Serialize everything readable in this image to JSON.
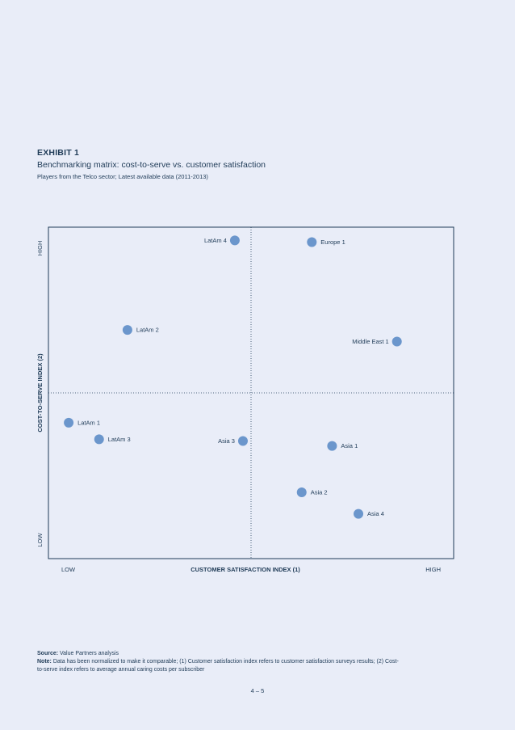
{
  "header": {
    "exhibit_label": "EXHIBIT 1",
    "title": "Benchmarking matrix: cost-to-serve vs. customer satisfaction",
    "subtitle": "Players from the Telco sector; Latest available data (2011-2013)"
  },
  "chart_data": {
    "type": "scatter",
    "title": "Benchmarking matrix: cost-to-serve vs. customer satisfaction",
    "xlabel": "CUSTOMER SATISFACTION INDEX (1)",
    "ylabel": "COST-TO-SERVE INDEX (2)",
    "x_low_label": "LOW",
    "x_high_label": "HIGH",
    "y_low_label": "LOW",
    "y_high_label": "HIGH",
    "xlim": [
      0,
      100
    ],
    "ylim": [
      0,
      100
    ],
    "x_divider": 50,
    "y_divider": 50,
    "marker_color": "#6b96cc",
    "points": [
      {
        "name": "LatAm 4",
        "x": 46,
        "y": 96,
        "label_side": "left"
      },
      {
        "name": "Europe 1",
        "x": 65,
        "y": 95.5,
        "label_side": "right"
      },
      {
        "name": "LatAm 2",
        "x": 19.5,
        "y": 69,
        "label_side": "right"
      },
      {
        "name": "Middle East 1",
        "x": 86,
        "y": 65.5,
        "label_side": "left"
      },
      {
        "name": "LatAm 1",
        "x": 5,
        "y": 41,
        "label_side": "right"
      },
      {
        "name": "LatAm 3",
        "x": 12.5,
        "y": 36,
        "label_side": "right"
      },
      {
        "name": "Asia 3",
        "x": 48,
        "y": 35.5,
        "label_side": "left"
      },
      {
        "name": "Asia 1",
        "x": 70,
        "y": 34,
        "label_side": "right"
      },
      {
        "name": "Asia 2",
        "x": 62.5,
        "y": 20,
        "label_side": "right"
      },
      {
        "name": "Asia 4",
        "x": 76.5,
        "y": 13.5,
        "label_side": "right"
      }
    ]
  },
  "footnotes": {
    "source_label": "Source:",
    "source_text": " Value Partners analysis",
    "note_label": "Note:",
    "note_text": " Data has been normalized to make it comparable; (1) Customer satisfaction index refers to customer satisfaction surveys results; (2) Cost-to-serve index refers to average annual caring costs per subscriber"
  },
  "page_number": "4 – 5"
}
